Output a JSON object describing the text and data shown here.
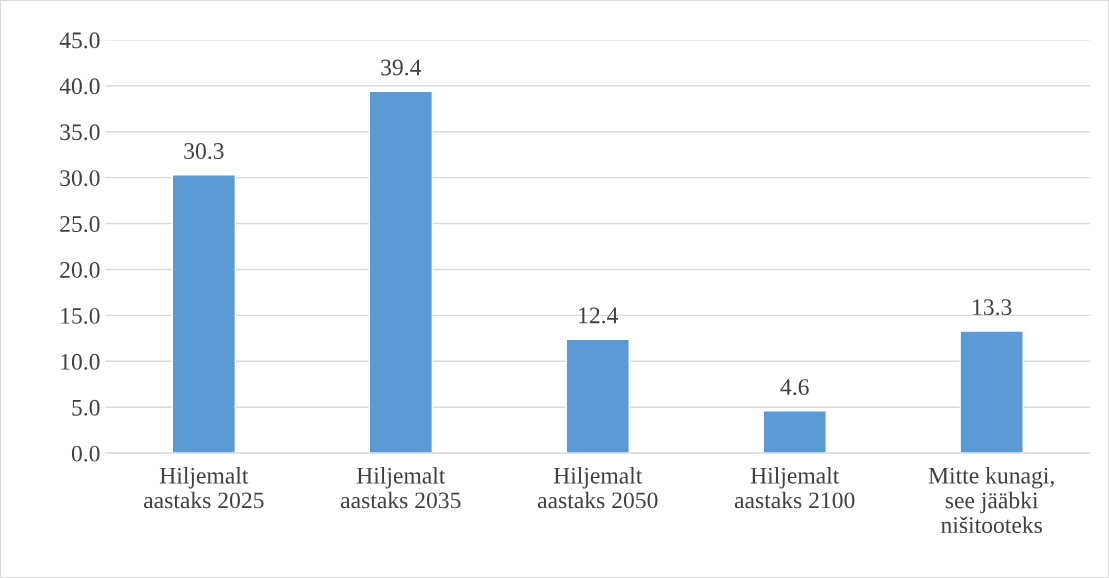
{
  "chart_data": {
    "type": "bar",
    "categories": [
      "Hiljemalt\naastaks 2025",
      "Hiljemalt\naastaks 2035",
      "Hiljemalt\naastaks 2050",
      "Hiljemalt\naastaks 2100",
      "Mitte kunagi,\nsee jääbki\nnišitooteks"
    ],
    "values": [
      30.3,
      39.4,
      12.4,
      4.6,
      13.3
    ],
    "color": "#5b9bd5",
    "ylim": [
      0,
      45
    ],
    "yticks": [
      {
        "value": 0,
        "label": "0.0"
      },
      {
        "value": 5,
        "label": "5.0"
      },
      {
        "value": 10,
        "label": "10.0"
      },
      {
        "value": 15,
        "label": "15.0"
      },
      {
        "value": 20,
        "label": "20.0"
      },
      {
        "value": 25,
        "label": "25.0"
      },
      {
        "value": 30,
        "label": "30.0"
      },
      {
        "value": 35,
        "label": "35.0"
      },
      {
        "value": 40,
        "label": "40.0"
      },
      {
        "value": 45,
        "label": "45.0"
      }
    ],
    "grid": "y",
    "data_labels": true
  }
}
